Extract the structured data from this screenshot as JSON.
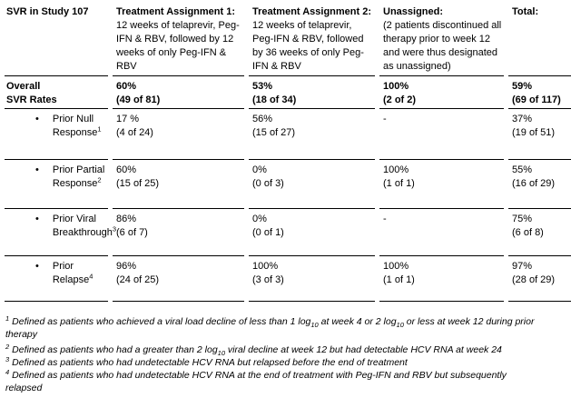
{
  "page": {
    "background": "#ffffff",
    "text_color": "#000000",
    "rule_color": "#000000"
  },
  "table": {
    "title": "SVR in Study 107",
    "bullet_char": "•",
    "columns": [
      {
        "header": "Treatment Assignment 1:",
        "description": "12 weeks of telaprevir, Peg-IFN & RBV, followed by 12 weeks of only Peg-IFN & RBV"
      },
      {
        "header": "Treatment Assignment 2:",
        "description": "12 weeks of telaprevir, Peg-IFN & RBV, followed by 36 weeks of only Peg-IFN & RBV"
      },
      {
        "header": "Unassigned:",
        "description": "(2 patients discontinued all therapy prior to week 12 and were thus designated as unassigned)"
      },
      {
        "header": "Total:",
        "description": ""
      }
    ],
    "overall": {
      "label": "Overall\nSVR Rates",
      "values": [
        {
          "pct": "60%",
          "n": "(49 of 81)"
        },
        {
          "pct": "53%",
          "n": "(18 of 34)"
        },
        {
          "pct": "100%",
          "n": "(2 of 2)"
        },
        {
          "pct": "59%",
          "n": "(69 of 117)"
        }
      ]
    },
    "rows": [
      {
        "label": "Prior Null\nResponse",
        "ref": "1",
        "values": [
          {
            "pct": "17 %",
            "n": "(4 of 24)"
          },
          {
            "pct": "56%",
            "n": "(15 of 27)"
          },
          {
            "pct": "-",
            "n": ""
          },
          {
            "pct": "37%",
            "n": "(19 of 51)"
          }
        ]
      },
      {
        "label": "Prior Partial\nResponse",
        "ref": "2",
        "values": [
          {
            "pct": "60%",
            "n": "(15 of 25)"
          },
          {
            "pct": "0%",
            "n": "(0 of 3)"
          },
          {
            "pct": "100%",
            "n": "(1 of 1)"
          },
          {
            "pct": "55%",
            "n": "(16 of 29)"
          }
        ]
      },
      {
        "label": "Prior Viral\nBreakthrough",
        "ref": "3",
        "values": [
          {
            "pct": "86%",
            "n": "(6 of 7)"
          },
          {
            "pct": "0%",
            "n": "(0 of 1)"
          },
          {
            "pct": "-",
            "n": ""
          },
          {
            "pct": "75%",
            "n": "(6 of 8)"
          }
        ]
      },
      {
        "label": "Prior Relapse",
        "ref": "4",
        "values": [
          {
            "pct": "96%",
            "n": "(24 of 25)"
          },
          {
            "pct": "100%",
            "n": "(3 of 3)"
          },
          {
            "pct": "100%",
            "n": "(1 of 1)"
          },
          {
            "pct": "97%",
            "n": "(28 of 29)"
          }
        ]
      }
    ]
  },
  "footnotes": [
    {
      "ref": "1",
      "segments": [
        {
          "t": "Defined as patients who achieved a viral load decline of less than 1 log"
        },
        {
          "t": "10",
          "sub": true
        },
        {
          "t": " at week 4 or 2 log"
        },
        {
          "t": "10",
          "sub": true
        },
        {
          "t": " or less at week 12 during prior"
        },
        {
          "br": true
        },
        {
          "t": "therapy"
        }
      ]
    },
    {
      "ref": "2",
      "segments": [
        {
          "t": "Defined as patients who had a greater than 2 log"
        },
        {
          "t": "10",
          "sub": true
        },
        {
          "t": " viral decline at week 12 but had detectable HCV RNA at week 24"
        }
      ]
    },
    {
      "ref": "3",
      "segments": [
        {
          "t": "Defined as patients who had undetectable HCV RNA but relapsed before the end of treatment"
        }
      ]
    },
    {
      "ref": "4",
      "segments": [
        {
          "t": "Defined as patients who had undetectable HCV RNA at the end of treatment with Peg-IFN and RBV but subsequently"
        },
        {
          "br": true
        },
        {
          "t": "relapsed"
        }
      ]
    }
  ]
}
